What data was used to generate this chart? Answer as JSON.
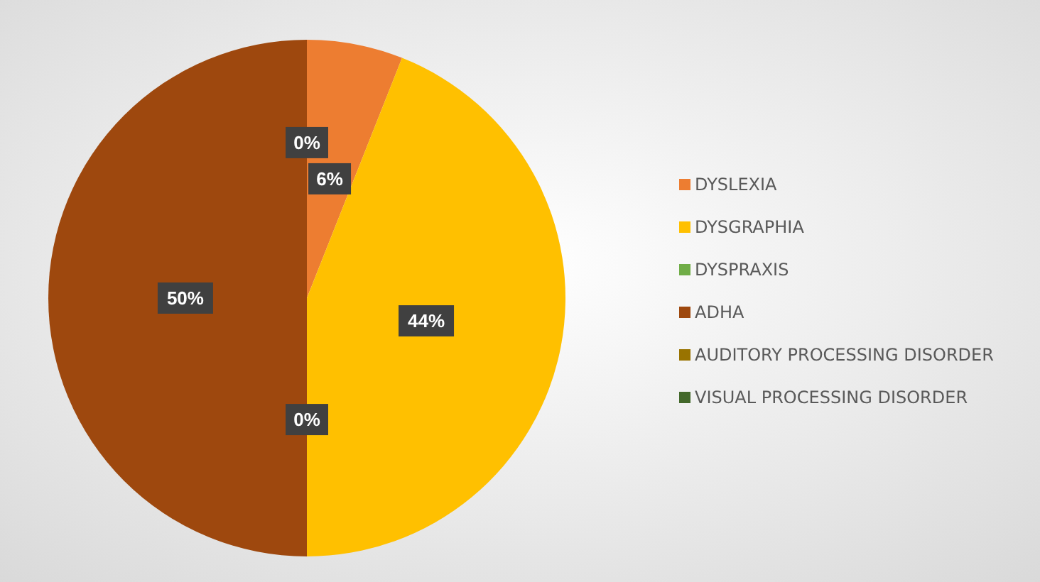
{
  "chart_data": {
    "type": "pie",
    "categories": [
      "DYSLEXIA",
      "DYSGRAPHIA",
      "DYSPRAXIS",
      "ADHA",
      "AUDITORY PROCESSING DISORDER",
      "VISUAL PROCESSING DISORDER"
    ],
    "values": [
      6,
      44,
      0,
      50,
      0,
      0
    ],
    "colors": [
      "#ed7d31",
      "#ffc000",
      "#70ad47",
      "#9e480e",
      "#997300",
      "#43682b"
    ],
    "value_labels": [
      "6%",
      "44%",
      "0%",
      "50%",
      null,
      "0%"
    ],
    "legend": "right"
  }
}
